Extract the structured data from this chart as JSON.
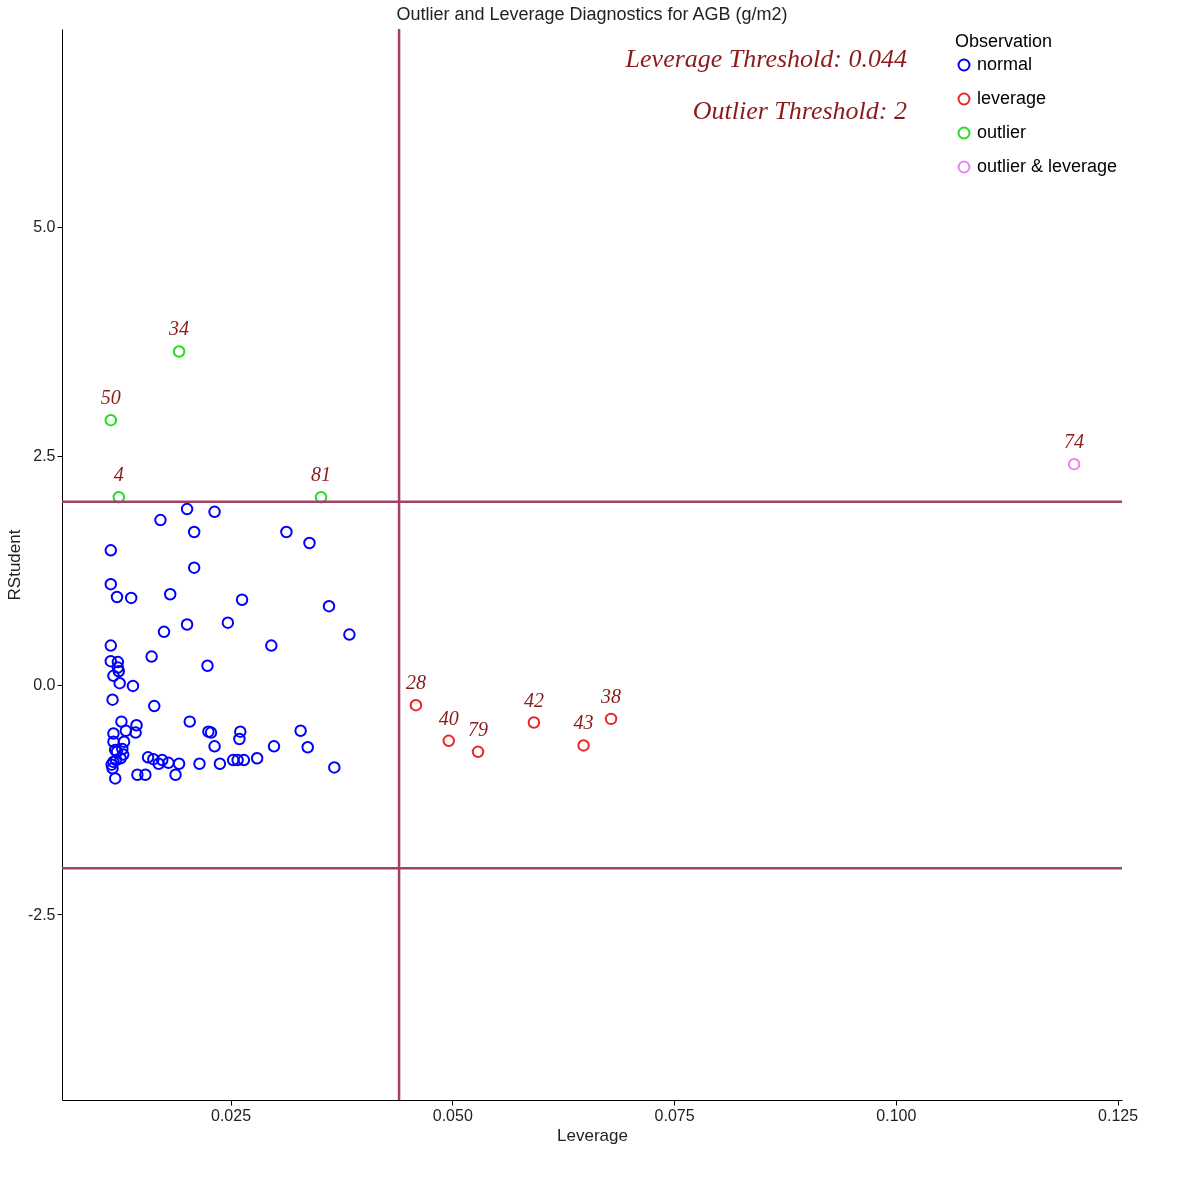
{
  "chart_data": {
    "type": "scatter",
    "title": "Outlier and Leverage Diagnostics for AGB (g/m2)",
    "xlabel": "Leverage",
    "ylabel": "RStudent",
    "legend_title": "Observation",
    "xlim": [
      0.006,
      0.1255
    ],
    "xticks": [
      0.025,
      {
        "value": 0.05,
        "label": "0.050"
      },
      0.075,
      {
        "value": 0.1,
        "label": "0.100"
      },
      0.125
    ],
    "ylim": [
      -4.53,
      7.16
    ],
    "yticks": [
      {
        "value": -2.5,
        "label": "-2.5"
      },
      {
        "value": 0,
        "label": "0.0"
      },
      {
        "value": 2.5,
        "label": "2.5"
      },
      {
        "value": 5,
        "label": "5.0"
      }
    ],
    "grid": false,
    "legend": "top right",
    "marker": "circle",
    "series": [
      {
        "name": "normal",
        "color": "#0000ff",
        "x": [
          0.0171,
          0.0201,
          0.0232,
          0.0115,
          0.0209,
          0.0313,
          0.0339,
          0.0209,
          0.0115,
          0.0122,
          0.0138,
          0.0182,
          0.0263,
          0.0361,
          0.0175,
          0.0201,
          0.0247,
          0.0384,
          0.0161,
          0.0296,
          0.0115,
          0.0224,
          0.0123,
          0.0115,
          0.0123,
          0.0124,
          0.0118,
          0.0125,
          0.014,
          0.0117,
          0.0164,
          0.0204,
          0.0127,
          0.0144,
          0.0143,
          0.0132,
          0.0118,
          0.0261,
          0.0329,
          0.0228,
          0.0225,
          0.026,
          0.013,
          0.0118,
          0.0232,
          0.0299,
          0.0337,
          0.012,
          0.0128,
          0.0122,
          0.0157,
          0.0129,
          0.0126,
          0.0121,
          0.0163,
          0.0173,
          0.018,
          0.0265,
          0.028,
          0.0118,
          0.0116,
          0.0117,
          0.0169,
          0.0192,
          0.0215,
          0.0238,
          0.0253,
          0.0258,
          0.0367,
          0.0145,
          0.0154,
          0.012,
          0.0188
        ],
        "values": [
          1.8,
          1.92,
          1.89,
          1.47,
          1.67,
          1.67,
          1.55,
          1.28,
          1.1,
          0.96,
          0.95,
          0.99,
          0.93,
          0.86,
          0.58,
          0.66,
          0.68,
          0.55,
          0.31,
          0.43,
          0.43,
          0.21,
          0.25,
          0.26,
          0.19,
          0.15,
          0.1,
          0.02,
          -0.01,
          -0.16,
          -0.23,
          -0.4,
          -0.4,
          -0.44,
          -0.52,
          -0.5,
          -0.53,
          -0.51,
          -0.5,
          -0.52,
          -0.51,
          -0.59,
          -0.62,
          -0.62,
          -0.67,
          -0.67,
          -0.68,
          -0.71,
          -0.7,
          -0.73,
          -0.79,
          -0.76,
          -0.8,
          -0.82,
          -0.81,
          -0.82,
          -0.85,
          -0.82,
          -0.8,
          -0.84,
          -0.87,
          -0.91,
          -0.86,
          -0.86,
          -0.86,
          -0.86,
          -0.82,
          -0.82,
          -0.9,
          -0.98,
          -0.98,
          -1.02,
          -0.98
        ]
      },
      {
        "name": "leverage",
        "color": "#e8262a",
        "x": [
          0.0459,
          0.0496,
          0.0529,
          0.0592,
          0.0648,
          0.0679
        ],
        "values": [
          -0.22,
          -0.61,
          -0.73,
          -0.41,
          -0.66,
          -0.37
        ]
      },
      {
        "name": "outlier",
        "color": "#22dd22",
        "x": [
          0.0115,
          0.0192,
          0.0124,
          0.0352
        ],
        "values": [
          2.89,
          3.64,
          2.05,
          2.05
        ]
      },
      {
        "name": "outlier & leverage",
        "color": "#ee82ee",
        "x": [
          0.1201
        ],
        "values": [
          2.41
        ]
      }
    ],
    "ref_lines": [
      {
        "axis": "x",
        "value": 0.044,
        "color": "#a3406a"
      },
      {
        "axis": "y",
        "value": 2,
        "color": "#a3406a"
      },
      {
        "axis": "y",
        "value": -2,
        "color": "#a3406a"
      }
    ],
    "annotations": [
      "Leverage Threshold: 0.044",
      "Outlier Threshold: 2",
      {
        "text": "50",
        "x": 0.0115,
        "y": 2.89
      },
      {
        "text": "34",
        "x": 0.0192,
        "y": 3.64
      },
      {
        "text": "4",
        "x": 0.0124,
        "y": 2.05
      },
      {
        "text": "81",
        "x": 0.0352,
        "y": 2.05
      },
      {
        "text": "28",
        "x": 0.0459,
        "y": -0.22
      },
      {
        "text": "40",
        "x": 0.0496,
        "y": -0.61
      },
      {
        "text": "79",
        "x": 0.0529,
        "y": -0.73
      },
      {
        "text": "42",
        "x": 0.0592,
        "y": -0.41
      },
      {
        "text": "43",
        "x": 0.0648,
        "y": -0.66
      },
      {
        "text": "38",
        "x": 0.0679,
        "y": -0.37
      },
      {
        "text": "74",
        "x": 0.1201,
        "y": 2.41
      }
    ]
  }
}
